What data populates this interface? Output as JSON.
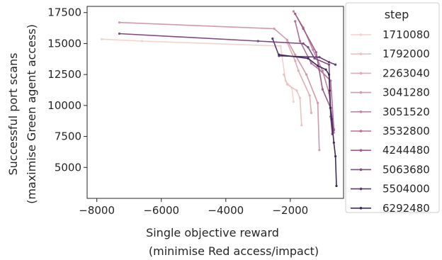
{
  "chart_data": {
    "type": "line",
    "xlabel_line1": "Single objective reward",
    "xlabel_line2": "(minimise Red access/impact)",
    "ylabel_line1": "Successful port scans",
    "ylabel_line2": "(maximise Green agent access)",
    "xlim": [
      -8300,
      -350
    ],
    "ylim": [
      2500,
      18000
    ],
    "xticks": [
      -8000,
      -6000,
      -4000,
      -2000
    ],
    "xtick_labels": [
      "−8000",
      "−6000",
      "−4000",
      "−2000"
    ],
    "yticks": [
      5000,
      7500,
      10000,
      12500,
      15000,
      17500
    ],
    "ytick_labels": [
      "5000",
      "7500",
      "10000",
      "12500",
      "15000",
      "17500"
    ],
    "legend": {
      "title": "step",
      "placement": "right-outside"
    },
    "series": [
      {
        "name": "1710080",
        "color": "#efd4cf",
        "points": [
          [
            -7850,
            15350
          ],
          [
            -6600,
            15200
          ],
          [
            -2300,
            14800
          ],
          [
            -2150,
            12000
          ],
          [
            -1950,
            11400
          ],
          [
            -1900,
            10300
          ]
        ]
      },
      {
        "name": "1792000",
        "color": "#e9c3c0",
        "points": [
          [
            -2200,
            12500
          ],
          [
            -2100,
            11700
          ],
          [
            -1800,
            11200
          ],
          [
            -1700,
            10600
          ],
          [
            -1650,
            8400
          ]
        ]
      },
      {
        "name": "2263040",
        "color": "#deaeb4",
        "points": [
          [
            -2100,
            15100
          ],
          [
            -1850,
            13600
          ],
          [
            -1750,
            12800
          ],
          [
            -1400,
            10800
          ],
          [
            -1350,
            9400
          ]
        ]
      },
      {
        "name": "3041280",
        "color": "#d09aab",
        "points": [
          [
            -7300,
            16700
          ],
          [
            -2500,
            16200
          ],
          [
            -2100,
            15300
          ],
          [
            -1850,
            14100
          ],
          [
            -1500,
            12500
          ],
          [
            -1150,
            10200
          ],
          [
            -1100,
            6400
          ]
        ]
      },
      {
        "name": "3051520",
        "color": "#c284a0",
        "points": [
          [
            -1900,
            17600
          ],
          [
            -1600,
            16300
          ],
          [
            -1300,
            14500
          ],
          [
            -1000,
            12800
          ],
          [
            -800,
            11000
          ],
          [
            -650,
            7800
          ]
        ]
      },
      {
        "name": "3532800",
        "color": "#b27196",
        "points": [
          [
            -1850,
            16800
          ],
          [
            -1700,
            15200
          ],
          [
            -1350,
            13400
          ],
          [
            -1100,
            12900
          ],
          [
            -750,
            12000
          ],
          [
            -650,
            8100
          ]
        ]
      },
      {
        "name": "4244480",
        "color": "#9b5c8c",
        "points": [
          [
            -1850,
            17400
          ],
          [
            -1600,
            16200
          ],
          [
            -1200,
            14300
          ],
          [
            -1000,
            11300
          ],
          [
            -750,
            9800
          ],
          [
            -650,
            8000
          ]
        ]
      },
      {
        "name": "5063680",
        "color": "#7d4b80",
        "points": [
          [
            -7300,
            15800
          ],
          [
            -3000,
            15200
          ],
          [
            -1600,
            15000
          ],
          [
            -1450,
            14700
          ],
          [
            -1250,
            13800
          ],
          [
            -800,
            13300
          ],
          [
            -750,
            9100
          ],
          [
            -700,
            7700
          ]
        ]
      },
      {
        "name": "5504000",
        "color": "#5e3a6e",
        "points": [
          [
            -2550,
            15400
          ],
          [
            -2350,
            14000
          ],
          [
            -1100,
            13900
          ],
          [
            -800,
            13500
          ],
          [
            -600,
            13300
          ]
        ]
      },
      {
        "name": "6292480",
        "color": "#3f2a5a",
        "points": [
          [
            -2350,
            14100
          ],
          [
            -1450,
            13800
          ],
          [
            -1150,
            13200
          ],
          [
            -900,
            12900
          ],
          [
            -800,
            12500
          ],
          [
            -780,
            11200
          ],
          [
            -760,
            9800
          ],
          [
            -720,
            8900
          ],
          [
            -650,
            7000
          ],
          [
            -600,
            5900
          ],
          [
            -570,
            3500
          ]
        ]
      }
    ]
  }
}
